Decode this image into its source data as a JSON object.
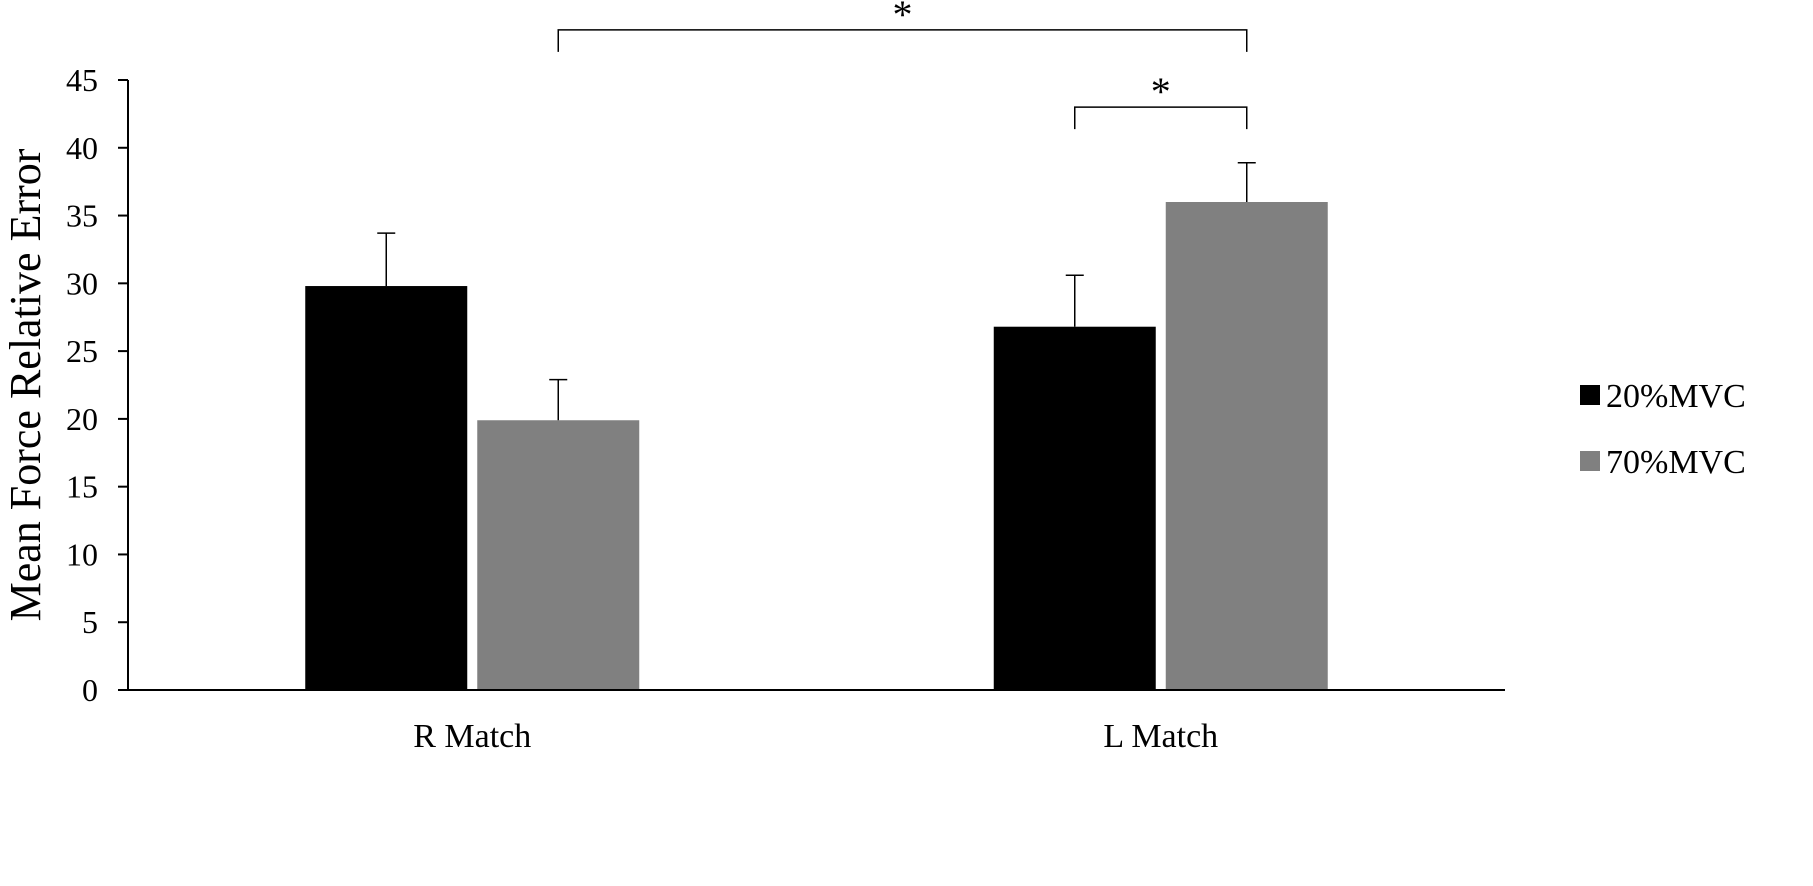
{
  "chart_data": {
    "type": "bar",
    "title": "",
    "xlabel": "",
    "ylabel": "Mean Force Relative Error",
    "ylim": [
      0,
      45
    ],
    "yticks": [
      0,
      5,
      10,
      15,
      20,
      25,
      30,
      35,
      40,
      45
    ],
    "grid": false,
    "legend_position": "right",
    "categories": [
      "R Match",
      "L Match"
    ],
    "series": [
      {
        "name": "20%MVC",
        "color": "#000000",
        "values": [
          29.8,
          26.8
        ],
        "errors": [
          3.9,
          3.8
        ]
      },
      {
        "name": "70%MVC",
        "color": "#808080",
        "values": [
          19.9,
          36.0
        ],
        "errors": [
          3.0,
          2.9
        ]
      }
    ],
    "significance": [
      {
        "label": "*",
        "from": {
          "category": 0,
          "series": 1
        },
        "to": {
          "category": 1,
          "series": 1
        },
        "y": 48.7
      },
      {
        "label": "*",
        "from": {
          "category": 1,
          "series": 0
        },
        "to": {
          "category": 1,
          "series": 1
        },
        "y": 43.0
      }
    ]
  }
}
